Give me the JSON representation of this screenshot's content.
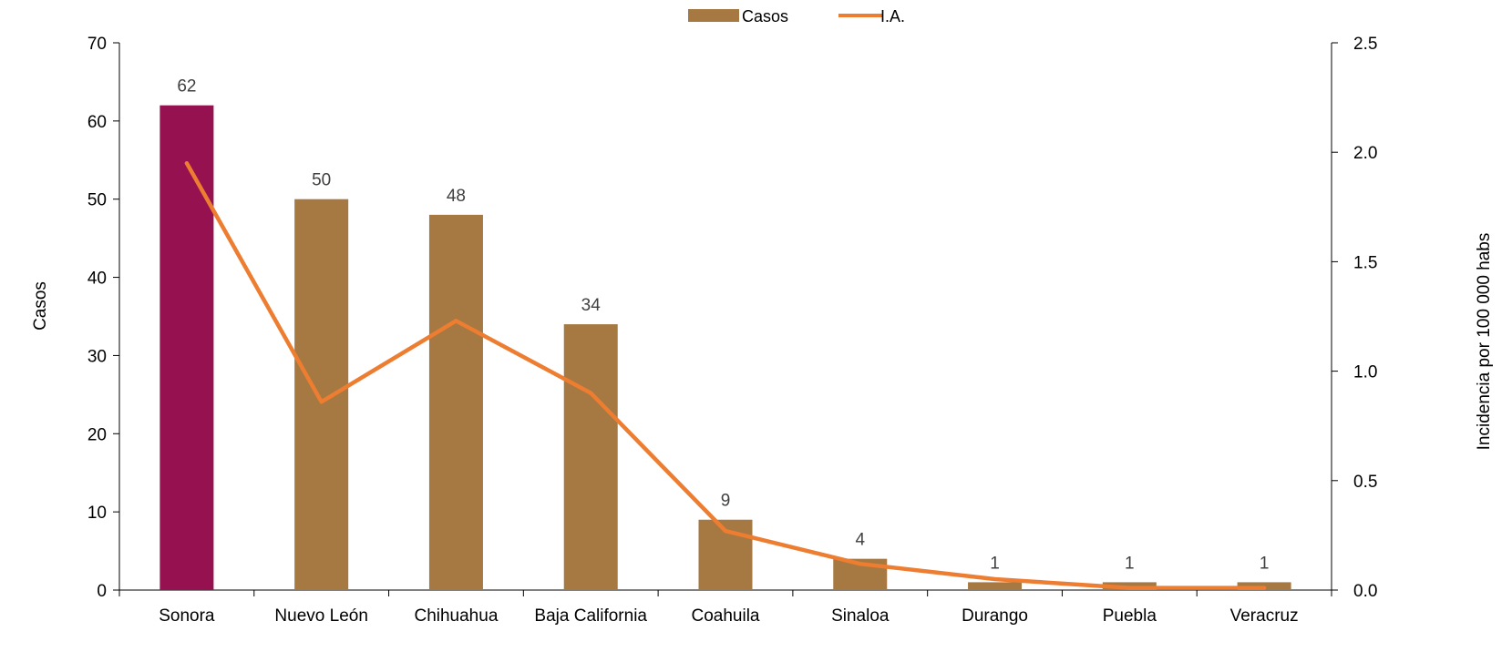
{
  "chart_data": {
    "type": "bar",
    "title": "",
    "categories": [
      "Sonora",
      "Nuevo León",
      "Chihuahua",
      "Baja California",
      "Coahuila",
      "Sinaloa",
      "Durango",
      "Puebla",
      "Veracruz"
    ],
    "series": [
      {
        "name": "Casos",
        "type": "bar",
        "axis": "left",
        "values": [
          62,
          50,
          48,
          34,
          9,
          4,
          1,
          1,
          1
        ],
        "color": "#A67842",
        "highlight_color": "#951150",
        "highlight_index": 0
      },
      {
        "name": "I.A.",
        "type": "line",
        "axis": "right",
        "values": [
          1.95,
          0.86,
          1.23,
          0.9,
          0.27,
          0.12,
          0.05,
          0.01,
          0.01
        ],
        "color": "#ED7D31"
      }
    ],
    "data_labels": [
      "62",
      "50",
      "48",
      "34",
      "9",
      "4",
      "1",
      "1",
      "1"
    ],
    "ylabel": "Casos",
    "y2label": "Incidencia por 100 000 habs",
    "ylim": [
      0,
      70
    ],
    "y_ticks": [
      0,
      10,
      20,
      30,
      40,
      50,
      60,
      70
    ],
    "y_tick_labels": [
      "0",
      "10",
      "20",
      "30",
      "40",
      "50",
      "60",
      "70"
    ],
    "y2lim": [
      0,
      2.5
    ],
    "y2_ticks": [
      0,
      0.5,
      1.0,
      1.5,
      2.0,
      2.5
    ],
    "y2_tick_labels": [
      "0.0",
      "0.5",
      "1.0",
      "1.5",
      "2.0",
      "2.5"
    ],
    "legend_position": "top-center",
    "grid": false
  }
}
